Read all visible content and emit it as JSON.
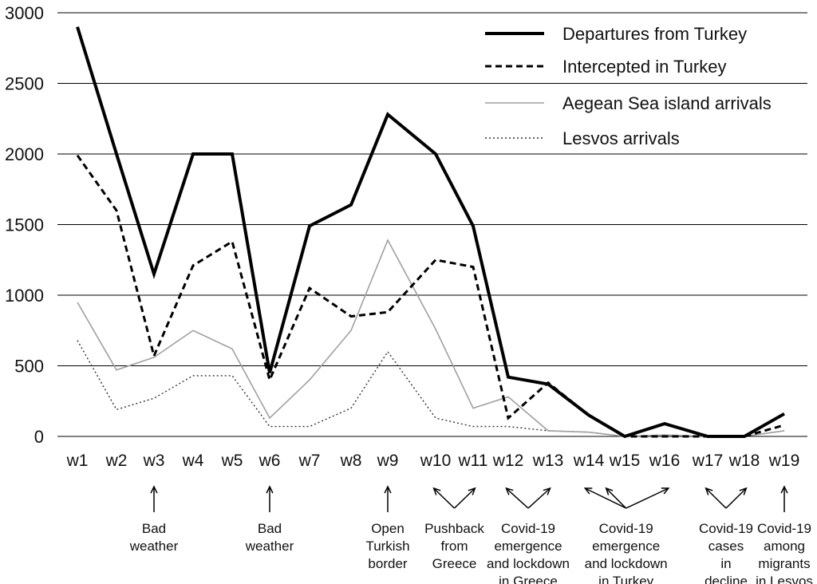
{
  "chart_data": {
    "type": "line",
    "title": "",
    "xlabel": "",
    "ylabel": "",
    "ylim": [
      0,
      3000
    ],
    "yticks": [
      0,
      500,
      1000,
      1500,
      2000,
      2500,
      3000
    ],
    "grid": true,
    "legend_position": "top-right",
    "categories": [
      "w1",
      "w2",
      "w3",
      "w4",
      "w5",
      "w6",
      "w7",
      "w8",
      "w9",
      "w10",
      "w11",
      "w12",
      "w13",
      "w14",
      "w15",
      "w16",
      "w17",
      "w18",
      "w19"
    ],
    "series": [
      {
        "name": "Departures from Turkey",
        "style": "solid-thick",
        "color": "#000000",
        "values": [
          2900,
          2000,
          1150,
          2000,
          2000,
          450,
          1490,
          1640,
          2280,
          2000,
          1490,
          420,
          370,
          150,
          0,
          90,
          0,
          0,
          160
        ]
      },
      {
        "name": "Intercepted in Turkey",
        "style": "dashed",
        "color": "#000000",
        "values": [
          1990,
          1600,
          570,
          1210,
          1380,
          400,
          1050,
          850,
          880,
          1250,
          1200,
          130,
          380,
          150,
          0,
          0,
          0,
          0,
          80
        ]
      },
      {
        "name": "Aegean Sea island arrivals",
        "style": "solid-thin",
        "color": "#a0a0a0",
        "values": [
          950,
          470,
          560,
          750,
          620,
          130,
          400,
          750,
          1390,
          760,
          200,
          280,
          40,
          30,
          0,
          10,
          0,
          0,
          40
        ]
      },
      {
        "name": "Lesvos arrivals",
        "style": "dotted",
        "color": "#333333",
        "values": [
          680,
          190,
          270,
          430,
          430,
          70,
          70,
          200,
          600,
          130,
          70,
          70,
          40,
          30,
          0,
          0,
          0,
          0,
          40
        ]
      }
    ],
    "annotations": [
      {
        "weeks": [
          3
        ],
        "lines": [
          "Bad",
          "weather"
        ]
      },
      {
        "weeks": [
          6
        ],
        "lines": [
          "Bad",
          "weather"
        ]
      },
      {
        "weeks": [
          9
        ],
        "lines": [
          "Open",
          "Turkish",
          "border"
        ]
      },
      {
        "weeks": [
          10,
          11
        ],
        "lines": [
          "Pushback",
          "from",
          "Greece"
        ]
      },
      {
        "weeks": [
          12,
          13
        ],
        "lines": [
          "Covid-19",
          "emergence",
          "and lockdown",
          "in Greece"
        ]
      },
      {
        "weeks": [
          14,
          15,
          16
        ],
        "lines": [
          "Covid-19",
          "emergence",
          "and lockdown",
          "in Turkey"
        ]
      },
      {
        "weeks": [
          17,
          18
        ],
        "lines": [
          "Covid-19",
          "cases",
          "in",
          "decline"
        ]
      },
      {
        "weeks": [
          19
        ],
        "lines": [
          "Covid-19",
          "among",
          "migrants",
          "in Lesvos"
        ]
      }
    ]
  }
}
